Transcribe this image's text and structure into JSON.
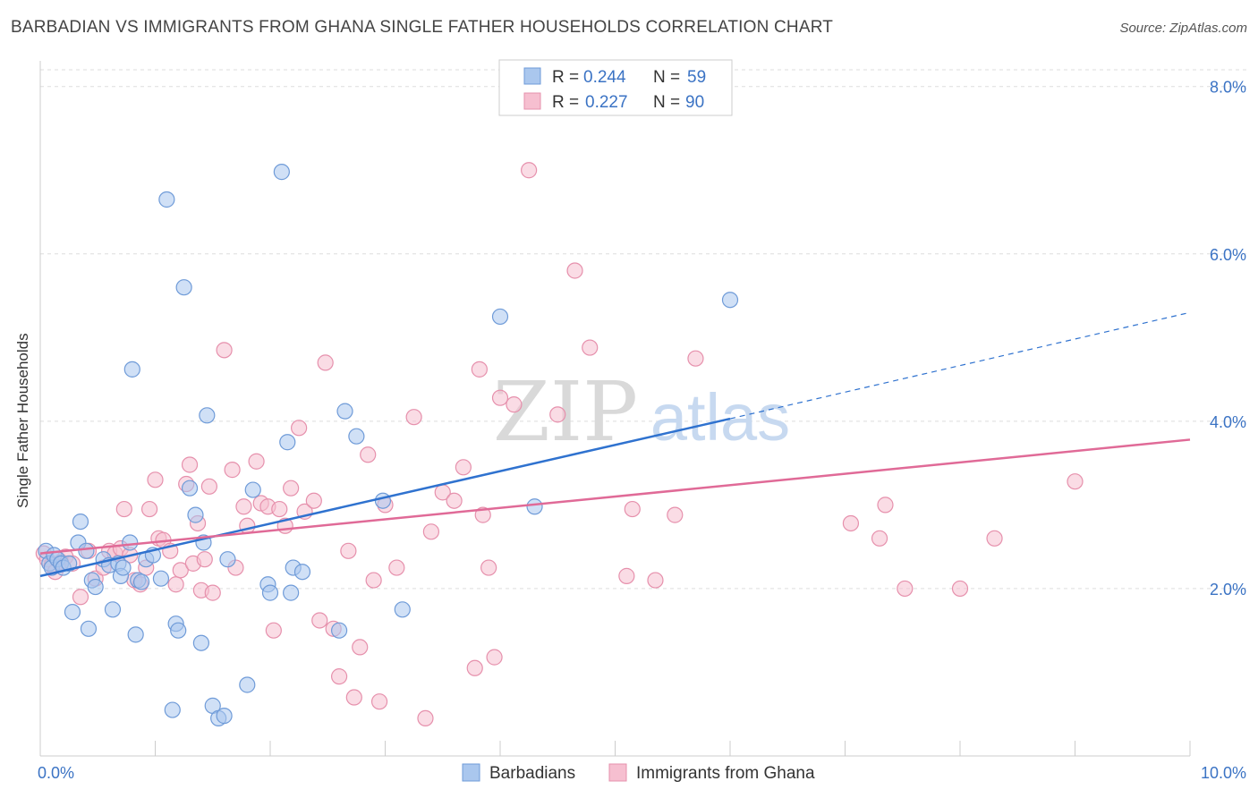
{
  "title": "BARBADIAN VS IMMIGRANTS FROM GHANA SINGLE FATHER HOUSEHOLDS CORRELATION CHART",
  "source": "Source: ZipAtlas.com",
  "watermark": {
    "zip": "ZIP",
    "atlas": "atlas"
  },
  "colors": {
    "blue_fill": "#aac7ee",
    "blue_stroke": "#6f9bd8",
    "blue_line": "#2f72cf",
    "pink_fill": "#f6bfd0",
    "pink_stroke": "#e690ac",
    "pink_line": "#e06a97",
    "tick": "#3b73c4",
    "grid": "#dddddd"
  },
  "stats": [
    {
      "r_label": "R =",
      "r_value": "0.244",
      "n_label": "N =",
      "n_value": "59"
    },
    {
      "r_label": "R =",
      "r_value": "0.227",
      "n_label": "N =",
      "n_value": "90"
    }
  ],
  "chart_data": {
    "type": "scatter",
    "title": "BARBADIAN VS IMMIGRANTS FROM GHANA SINGLE FATHER HOUSEHOLDS CORRELATION CHART",
    "xlabel": "",
    "ylabel": "Single Father Households",
    "xlim": [
      0,
      10
    ],
    "ylim": [
      0,
      8.2
    ],
    "x_tick_labels": [
      {
        "x": 0,
        "label": "0.0%"
      },
      {
        "x": 10,
        "label": "10.0%"
      }
    ],
    "y_ticks": [
      {
        "y": 2,
        "label": "2.0%"
      },
      {
        "y": 4,
        "label": "4.0%"
      },
      {
        "y": 6,
        "label": "6.0%"
      },
      {
        "y": 8,
        "label": "8.0%"
      }
    ],
    "grid": true,
    "legend_position": "top-center",
    "series": [
      {
        "name": "Barbadians",
        "trend": {
          "x0": 0,
          "y0": 2.15,
          "x1": 6.0,
          "y1": 4.03,
          "dash_to_x": 10.0,
          "dash_to_y": 5.3
        },
        "points": [
          [
            0.05,
            2.45
          ],
          [
            0.08,
            2.3
          ],
          [
            0.1,
            2.25
          ],
          [
            0.12,
            2.4
          ],
          [
            0.15,
            2.35
          ],
          [
            0.18,
            2.3
          ],
          [
            0.2,
            2.25
          ],
          [
            0.25,
            2.3
          ],
          [
            0.28,
            1.72
          ],
          [
            0.33,
            2.55
          ],
          [
            0.35,
            2.8
          ],
          [
            0.4,
            2.45
          ],
          [
            0.42,
            1.52
          ],
          [
            0.45,
            2.1
          ],
          [
            0.48,
            2.02
          ],
          [
            0.55,
            2.35
          ],
          [
            0.6,
            2.28
          ],
          [
            0.63,
            1.75
          ],
          [
            0.68,
            2.3
          ],
          [
            0.7,
            2.15
          ],
          [
            0.72,
            2.25
          ],
          [
            0.78,
            2.55
          ],
          [
            0.8,
            4.62
          ],
          [
            0.83,
            1.45
          ],
          [
            0.85,
            2.1
          ],
          [
            0.88,
            2.08
          ],
          [
            0.92,
            2.35
          ],
          [
            0.98,
            2.4
          ],
          [
            1.05,
            2.12
          ],
          [
            1.1,
            6.65
          ],
          [
            1.15,
            0.55
          ],
          [
            1.18,
            1.58
          ],
          [
            1.2,
            1.5
          ],
          [
            1.25,
            5.6
          ],
          [
            1.3,
            3.2
          ],
          [
            1.35,
            2.88
          ],
          [
            1.4,
            1.35
          ],
          [
            1.42,
            2.55
          ],
          [
            1.45,
            4.07
          ],
          [
            1.5,
            0.6
          ],
          [
            1.55,
            0.45
          ],
          [
            1.6,
            0.48
          ],
          [
            1.63,
            2.35
          ],
          [
            1.8,
            0.85
          ],
          [
            1.85,
            3.18
          ],
          [
            1.98,
            2.05
          ],
          [
            2.0,
            1.95
          ],
          [
            2.1,
            6.98
          ],
          [
            2.15,
            3.75
          ],
          [
            2.18,
            1.95
          ],
          [
            2.2,
            2.25
          ],
          [
            2.28,
            2.2
          ],
          [
            2.6,
            1.5
          ],
          [
            2.65,
            4.12
          ],
          [
            2.75,
            3.82
          ],
          [
            2.98,
            3.05
          ],
          [
            3.15,
            1.75
          ],
          [
            4.0,
            5.25
          ],
          [
            4.3,
            2.98
          ],
          [
            6.0,
            5.45
          ]
        ]
      },
      {
        "name": "Immigrants from Ghana",
        "trend": {
          "x0": 0,
          "y0": 2.42,
          "x1": 10.0,
          "y1": 3.78
        },
        "points": [
          [
            0.03,
            2.42
          ],
          [
            0.06,
            2.35
          ],
          [
            0.1,
            2.28
          ],
          [
            0.13,
            2.2
          ],
          [
            0.18,
            2.32
          ],
          [
            0.22,
            2.38
          ],
          [
            0.28,
            2.3
          ],
          [
            0.35,
            1.9
          ],
          [
            0.42,
            2.45
          ],
          [
            0.48,
            2.12
          ],
          [
            0.55,
            2.25
          ],
          [
            0.6,
            2.45
          ],
          [
            0.65,
            2.42
          ],
          [
            0.7,
            2.48
          ],
          [
            0.73,
            2.95
          ],
          [
            0.78,
            2.4
          ],
          [
            0.82,
            2.1
          ],
          [
            0.87,
            2.05
          ],
          [
            0.92,
            2.25
          ],
          [
            0.95,
            2.95
          ],
          [
            1.0,
            3.3
          ],
          [
            1.03,
            2.6
          ],
          [
            1.07,
            2.58
          ],
          [
            1.13,
            2.45
          ],
          [
            1.18,
            2.05
          ],
          [
            1.22,
            2.22
          ],
          [
            1.27,
            3.25
          ],
          [
            1.3,
            3.48
          ],
          [
            1.33,
            2.3
          ],
          [
            1.37,
            2.78
          ],
          [
            1.4,
            1.98
          ],
          [
            1.43,
            2.35
          ],
          [
            1.47,
            3.22
          ],
          [
            1.5,
            1.95
          ],
          [
            1.6,
            4.85
          ],
          [
            1.67,
            3.42
          ],
          [
            1.7,
            2.25
          ],
          [
            1.77,
            2.98
          ],
          [
            1.8,
            2.75
          ],
          [
            1.88,
            3.52
          ],
          [
            1.92,
            3.02
          ],
          [
            1.98,
            2.98
          ],
          [
            2.03,
            1.5
          ],
          [
            2.08,
            2.95
          ],
          [
            2.13,
            2.75
          ],
          [
            2.18,
            3.2
          ],
          [
            2.25,
            3.92
          ],
          [
            2.3,
            2.92
          ],
          [
            2.38,
            3.05
          ],
          [
            2.43,
            1.62
          ],
          [
            2.48,
            4.7
          ],
          [
            2.55,
            1.52
          ],
          [
            2.6,
            0.95
          ],
          [
            2.68,
            2.45
          ],
          [
            2.73,
            0.7
          ],
          [
            2.78,
            1.3
          ],
          [
            2.85,
            3.6
          ],
          [
            2.9,
            2.1
          ],
          [
            2.95,
            0.65
          ],
          [
            3.0,
            3.0
          ],
          [
            3.1,
            2.25
          ],
          [
            3.25,
            4.05
          ],
          [
            3.35,
            0.45
          ],
          [
            3.4,
            2.68
          ],
          [
            3.5,
            3.15
          ],
          [
            3.6,
            3.05
          ],
          [
            3.68,
            3.45
          ],
          [
            3.78,
            1.05
          ],
          [
            3.82,
            4.62
          ],
          [
            3.85,
            2.88
          ],
          [
            3.9,
            2.25
          ],
          [
            3.95,
            1.18
          ],
          [
            4.0,
            4.28
          ],
          [
            4.12,
            4.2
          ],
          [
            4.5,
            4.08
          ],
          [
            4.65,
            5.8
          ],
          [
            4.78,
            4.88
          ],
          [
            5.1,
            2.15
          ],
          [
            5.15,
            2.95
          ],
          [
            5.35,
            2.1
          ],
          [
            5.52,
            2.88
          ],
          [
            5.7,
            4.75
          ],
          [
            7.05,
            2.78
          ],
          [
            7.3,
            2.6
          ],
          [
            7.35,
            3.0
          ],
          [
            7.52,
            2.0
          ],
          [
            8.0,
            2.0
          ],
          [
            8.3,
            2.6
          ],
          [
            9.0,
            3.28
          ],
          [
            4.25,
            7.0
          ]
        ]
      }
    ]
  }
}
